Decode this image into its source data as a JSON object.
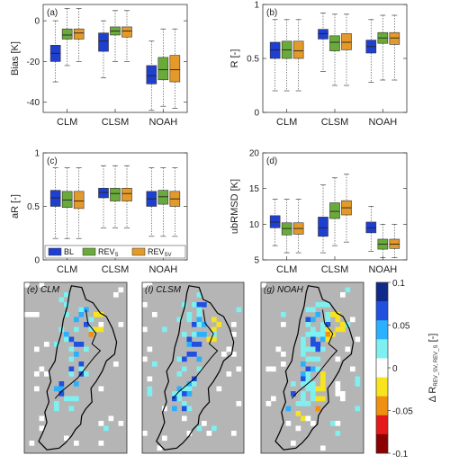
{
  "chart_data": [
    {
      "type": "box",
      "panel_label": "(a)",
      "ylabel": "Bias [K]",
      "ylim": [
        -45,
        8
      ],
      "yticks": [
        -40,
        -20,
        0
      ],
      "categories": [
        "CLM",
        "CLSM",
        "NOAH"
      ],
      "series": [
        {
          "name": "BL",
          "color": "#1f3fd0",
          "boxes": [
            {
              "whisker_low": -30,
              "q1": -20,
              "median": -16,
              "q3": -12,
              "whisker_high": 0
            },
            {
              "whisker_low": -28,
              "q1": -15,
              "median": -10,
              "q3": -6,
              "whisker_high": 0
            },
            {
              "whisker_low": -44,
              "q1": -31,
              "median": -27,
              "q3": -22,
              "whisker_high": -10
            }
          ]
        },
        {
          "name": "REV_S",
          "color": "#6aaa3a",
          "boxes": [
            {
              "whisker_low": -22,
              "q1": -9,
              "median": -7,
              "q3": -4,
              "whisker_high": 6
            },
            {
              "whisker_low": -20,
              "q1": -7,
              "median": -5,
              "q3": -3,
              "whisker_high": 5
            },
            {
              "whisker_low": -42,
              "q1": -29,
              "median": -24,
              "q3": -18,
              "whisker_high": -4
            }
          ]
        },
        {
          "name": "REV_SV",
          "color": "#e39a2a",
          "boxes": [
            {
              "whisker_low": -20,
              "q1": -9,
              "median": -6,
              "q3": -4,
              "whisker_high": 6
            },
            {
              "whisker_low": -20,
              "q1": -8,
              "median": -5,
              "q3": -3,
              "whisker_high": 5
            },
            {
              "whisker_low": -43,
              "q1": -30,
              "median": -24,
              "q3": -17,
              "whisker_high": -4
            }
          ]
        }
      ]
    },
    {
      "type": "box",
      "panel_label": "(b)",
      "ylabel": "R [-]",
      "ylim": [
        0,
        1
      ],
      "yticks": [
        0,
        0.5,
        1
      ],
      "categories": [
        "CLM",
        "CLSM",
        "NOAH"
      ],
      "series": [
        {
          "name": "BL",
          "color": "#1f3fd0",
          "boxes": [
            {
              "whisker_low": 0.2,
              "q1": 0.5,
              "median": 0.58,
              "q3": 0.65,
              "whisker_high": 0.86
            },
            {
              "whisker_low": 0.38,
              "q1": 0.68,
              "median": 0.73,
              "q3": 0.77,
              "whisker_high": 0.92
            },
            {
              "whisker_low": 0.28,
              "q1": 0.55,
              "median": 0.61,
              "q3": 0.67,
              "whisker_high": 0.86
            }
          ]
        },
        {
          "name": "REV_S",
          "color": "#6aaa3a",
          "boxes": [
            {
              "whisker_low": 0.2,
              "q1": 0.5,
              "median": 0.58,
              "q3": 0.66,
              "whisker_high": 0.86
            },
            {
              "whisker_low": 0.25,
              "q1": 0.57,
              "median": 0.65,
              "q3": 0.71,
              "whisker_high": 0.91
            },
            {
              "whisker_low": 0.3,
              "q1": 0.64,
              "median": 0.69,
              "q3": 0.74,
              "whisker_high": 0.9
            }
          ]
        },
        {
          "name": "REV_SV",
          "color": "#e39a2a",
          "boxes": [
            {
              "whisker_low": 0.2,
              "q1": 0.5,
              "median": 0.57,
              "q3": 0.66,
              "whisker_high": 0.86
            },
            {
              "whisker_low": 0.25,
              "q1": 0.58,
              "median": 0.65,
              "q3": 0.73,
              "whisker_high": 0.91
            },
            {
              "whisker_low": 0.3,
              "q1": 0.63,
              "median": 0.69,
              "q3": 0.74,
              "whisker_high": 0.9
            }
          ]
        }
      ]
    },
    {
      "type": "box",
      "panel_label": "(c)",
      "ylabel": "aR [-]",
      "ylim": [
        0,
        1
      ],
      "yticks": [
        0,
        0.5,
        1
      ],
      "categories": [
        "CLM",
        "CLSM",
        "NOAH"
      ],
      "series": [
        {
          "name": "BL",
          "color": "#1f3fd0",
          "boxes": [
            {
              "whisker_low": 0.2,
              "q1": 0.5,
              "median": 0.58,
              "q3": 0.65,
              "whisker_high": 0.86
            },
            {
              "whisker_low": 0.3,
              "q1": 0.58,
              "median": 0.63,
              "q3": 0.67,
              "whisker_high": 0.88
            },
            {
              "whisker_low": 0.22,
              "q1": 0.5,
              "median": 0.57,
              "q3": 0.64,
              "whisker_high": 0.86
            }
          ]
        },
        {
          "name": "REV_S",
          "color": "#6aaa3a",
          "boxes": [
            {
              "whisker_low": 0.2,
              "q1": 0.49,
              "median": 0.56,
              "q3": 0.64,
              "whisker_high": 0.86
            },
            {
              "whisker_low": 0.3,
              "q1": 0.55,
              "median": 0.62,
              "q3": 0.67,
              "whisker_high": 0.88
            },
            {
              "whisker_low": 0.22,
              "q1": 0.52,
              "median": 0.59,
              "q3": 0.65,
              "whisker_high": 0.86
            }
          ]
        },
        {
          "name": "REV_SV",
          "color": "#e39a2a",
          "boxes": [
            {
              "whisker_low": 0.2,
              "q1": 0.48,
              "median": 0.55,
              "q3": 0.64,
              "whisker_high": 0.86
            },
            {
              "whisker_low": 0.3,
              "q1": 0.55,
              "median": 0.62,
              "q3": 0.67,
              "whisker_high": 0.88
            },
            {
              "whisker_low": 0.22,
              "q1": 0.5,
              "median": 0.57,
              "q3": 0.64,
              "whisker_high": 0.86
            }
          ]
        }
      ],
      "legend": {
        "placement": "bottom-left",
        "entries": [
          {
            "main": "BL",
            "sub": "",
            "color": "#1f3fd0"
          },
          {
            "main": "REV",
            "sub": "S",
            "color": "#6aaa3a"
          },
          {
            "main": "REV",
            "sub": "SV",
            "color": "#e39a2a"
          }
        ]
      }
    },
    {
      "type": "box",
      "panel_label": "(d)",
      "ylabel": "ubRMSD [K]",
      "ylim": [
        5,
        20
      ],
      "yticks": [
        5,
        10,
        15,
        20
      ],
      "categories": [
        "CLM",
        "CLSM",
        "NOAH"
      ],
      "series": [
        {
          "name": "BL",
          "color": "#1f3fd0",
          "boxes": [
            {
              "whisker_low": 7,
              "q1": 9.5,
              "median": 10.3,
              "q3": 11.2,
              "whisker_high": 13.5
            },
            {
              "whisker_low": 6,
              "q1": 8.3,
              "median": 9.5,
              "q3": 11,
              "whisker_high": 15.5
            },
            {
              "whisker_low": 6.2,
              "q1": 8.8,
              "median": 9.5,
              "q3": 10.3,
              "whisker_high": 12.5
            }
          ]
        },
        {
          "name": "REV_S",
          "color": "#6aaa3a",
          "boxes": [
            {
              "whisker_low": 6,
              "q1": 8.5,
              "median": 9.4,
              "q3": 10.2,
              "whisker_high": 13.5
            },
            {
              "whisker_low": 7,
              "q1": 10.8,
              "median": 11.8,
              "q3": 13,
              "whisker_high": 16.5
            },
            {
              "whisker_low": 5.3,
              "q1": 6.5,
              "median": 7.2,
              "q3": 7.9,
              "whisker_high": 10
            }
          ]
        },
        {
          "name": "REV_SV",
          "color": "#e39a2a",
          "boxes": [
            {
              "whisker_low": 6,
              "q1": 8.6,
              "median": 9.4,
              "q3": 10.2,
              "whisker_high": 13.5
            },
            {
              "whisker_low": 7.5,
              "q1": 11.3,
              "median": 12.3,
              "q3": 13.3,
              "whisker_high": 17
            },
            {
              "whisker_low": 5.3,
              "q1": 6.6,
              "median": 7.2,
              "q3": 7.9,
              "whisker_high": 10
            }
          ]
        }
      ]
    },
    {
      "type": "heatmap",
      "maps": [
        {
          "panel_label": "(e) CLM"
        },
        {
          "panel_label": "(f) CLSM"
        },
        {
          "panel_label": "(g) NOAH"
        }
      ],
      "colorbar": {
        "ticks": [
          "0.1",
          "0.05",
          "0",
          "-0.05",
          "-0.1"
        ],
        "tick_values": [
          0.1,
          0.05,
          0,
          -0.05,
          -0.1
        ],
        "range": [
          -0.1,
          0.1
        ],
        "label": "Δ R",
        "label_sub": "REV_SV, REV_S",
        "label_unit": " [-]",
        "colors": [
          "#8b0000",
          "#e41a1a",
          "#f09010",
          "#f7e41e",
          "#ffffff",
          "#7ef0f0",
          "#29b0ff",
          "#2050e0",
          "#102a8a"
        ]
      }
    }
  ]
}
